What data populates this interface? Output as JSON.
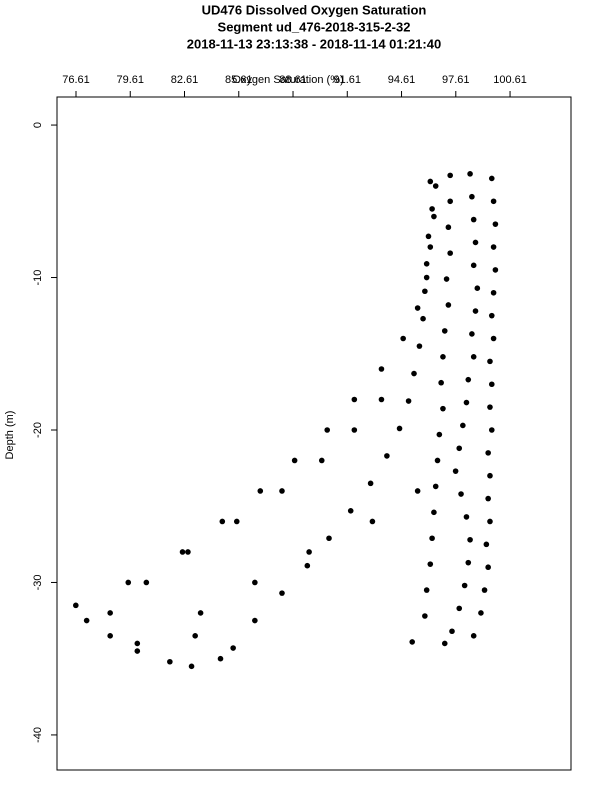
{
  "chart_data": {
    "type": "scatter",
    "title": "UD476 Dissolved Oxygen Saturation",
    "subtitle": "Segment ud_476-2018-315-2-32",
    "time_range": "2018-11-13 23:13:38 - 2018-11-14 01:21:40",
    "x_label": "Oxygen Saturation (%)",
    "y_label": "Depth (m)",
    "xlim": [
      75.56,
      103.98
    ],
    "ylim": [
      -42.3,
      1.84
    ],
    "xticks": [
      76.61,
      79.61,
      82.61,
      85.61,
      88.61,
      91.61,
      94.61,
      97.61,
      100.61
    ],
    "yticks": [
      0,
      -10,
      -20,
      -30,
      -40
    ],
    "series": [
      {
        "color": "#000000",
        "x": [
          99.6,
          99.7,
          99.8,
          99.7,
          99.8,
          99.7,
          99.6,
          99.7,
          99.5,
          99.6,
          99.5,
          99.6,
          99.4,
          99.5,
          99.4,
          99.5,
          99.3,
          99.4,
          99.2,
          99.0,
          98.6,
          98.4,
          98.5,
          98.6,
          98.7,
          98.6,
          98.8,
          98.7,
          98.5,
          98.6,
          98.3,
          98.2,
          98.0,
          97.8,
          97.6,
          97.9,
          98.2,
          98.4,
          98.3,
          98.1,
          97.8,
          97.4,
          97.0,
          97.3,
          97.3,
          97.2,
          97.3,
          97.1,
          97.2,
          97.0,
          96.9,
          96.8,
          96.9,
          96.7,
          96.6,
          96.5,
          96.4,
          96.3,
          96.2,
          96.0,
          95.9,
          95.2,
          96.2,
          96.3,
          96.1,
          96.0,
          95.9,
          95.8,
          95.6,
          95.3,
          95.0,
          94.5,
          93.8,
          92.9,
          91.8,
          90.6,
          89.4,
          88.0,
          86.5,
          85.3,
          96.5,
          96.4,
          96.2,
          96.0,
          95.5,
          94.7,
          93.5,
          92.0,
          90.5,
          88.7,
          86.8,
          84.7,
          82.8,
          80.5,
          78.5,
          80.0,
          83.0,
          93.5,
          92.0,
          90.2,
          88.0,
          85.5,
          82.5,
          79.5,
          76.6,
          77.2,
          78.5,
          80.0,
          81.8,
          95.5,
          93.0,
          89.5,
          86.5,
          83.5,
          83.2,
          84.6
        ],
        "values": [
          -3.5,
          -5,
          -6.5,
          -8,
          -9.5,
          -11,
          -12.5,
          -14,
          -15.5,
          -17,
          -18.5,
          -20,
          -21.5,
          -23,
          -24.5,
          -26,
          -27.5,
          -29,
          -30.5,
          -32,
          -33.5,
          -3.2,
          -4.7,
          -6.2,
          -7.7,
          -9.2,
          -10.7,
          -12.2,
          -13.7,
          -15.2,
          -16.7,
          -18.2,
          -19.7,
          -21.2,
          -22.7,
          -24.2,
          -25.7,
          -27.2,
          -28.7,
          -30.2,
          -31.7,
          -33.2,
          -34,
          -3.3,
          -5,
          -6.7,
          -8.4,
          -10.1,
          -11.8,
          -13.5,
          -15.2,
          -16.9,
          -18.6,
          -20.3,
          -22,
          -23.7,
          -25.4,
          -27.1,
          -28.8,
          -30.5,
          -32.2,
          -33.9,
          -3.7,
          -5.5,
          -7.3,
          -9.1,
          -10.9,
          -12.7,
          -14.5,
          -16.3,
          -18.1,
          -19.9,
          -21.7,
          -23.5,
          -25.3,
          -27.1,
          -28.9,
          -30.7,
          -32.5,
          -34.3,
          -4,
          -6,
          -8,
          -10,
          -12,
          -14,
          -16,
          -18,
          -20,
          -22,
          -24,
          -26,
          -28,
          -30,
          -32,
          -34,
          -35.5,
          -18,
          -20,
          -22,
          -24,
          -26,
          -28,
          -30,
          -31.5,
          -32.5,
          -33.5,
          -34.5,
          -35.2,
          -24,
          -26,
          -28,
          -30,
          -32,
          -33.5,
          -35
        ]
      }
    ]
  }
}
